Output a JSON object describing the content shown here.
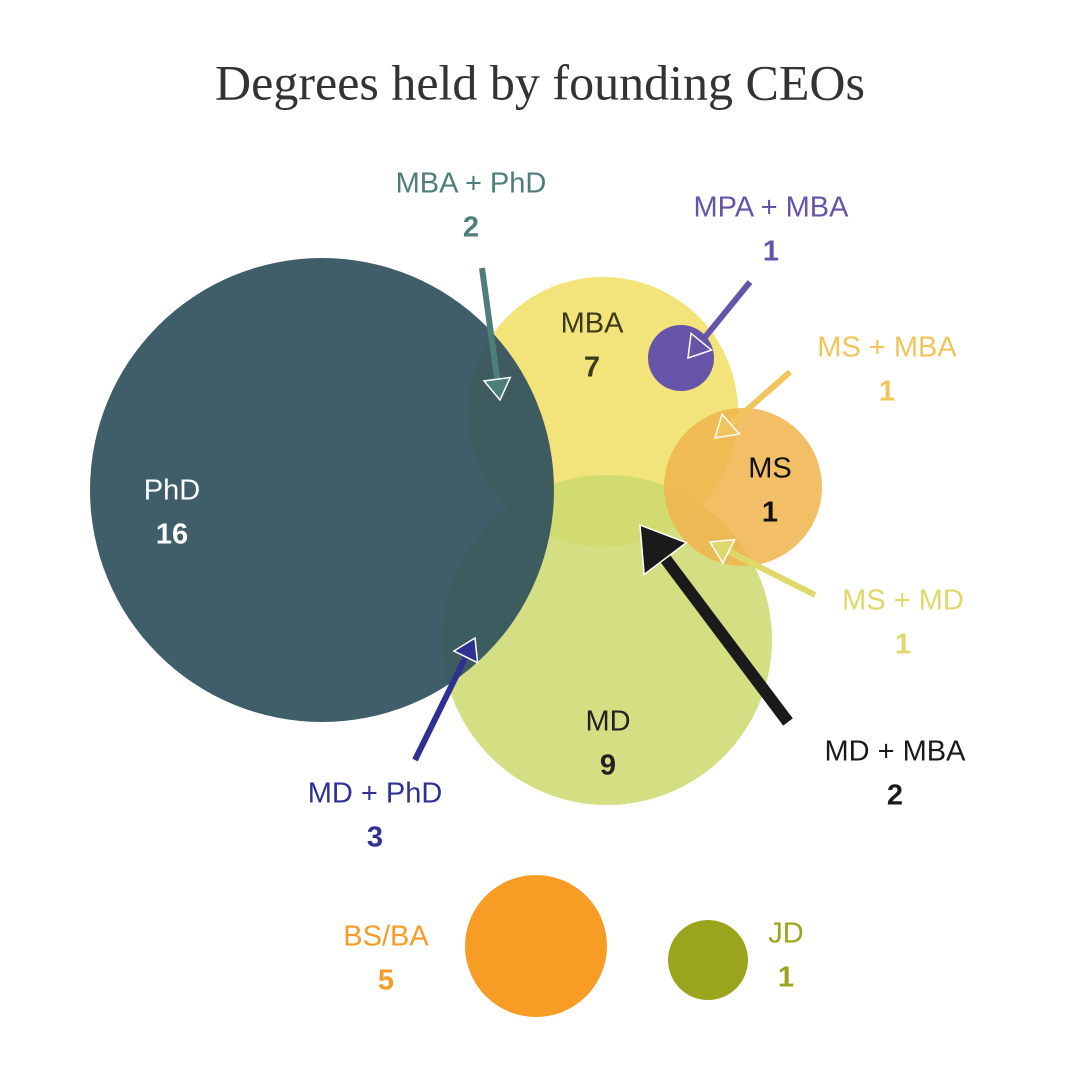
{
  "chart_data": {
    "type": "venn",
    "title": "Degrees held by founding CEOs",
    "sets": [
      {
        "name": "PhD",
        "value": 16,
        "color": "#2f505c"
      },
      {
        "name": "MBA",
        "value": 7,
        "color": "#f2e47a"
      },
      {
        "name": "MD",
        "value": 9,
        "color": "#cdd96e"
      },
      {
        "name": "MS",
        "value": 1,
        "color": "#f0b44c"
      },
      {
        "name": "BS/BA",
        "value": 5,
        "color": "#f79c25"
      },
      {
        "name": "JD",
        "value": 1,
        "color": "#9aa41d"
      }
    ],
    "overlaps": [
      {
        "name": "MBA + PhD",
        "value": 2,
        "color": "#4e7e7a"
      },
      {
        "name": "MPA + MBA",
        "value": 1,
        "color": "#6654a8"
      },
      {
        "name": "MS + MBA",
        "value": 1,
        "color": "#f2c55c"
      },
      {
        "name": "MS + MD",
        "value": 1,
        "color": "#e0d86a"
      },
      {
        "name": "MD + MBA",
        "value": 2,
        "color": "#1a1a1a"
      },
      {
        "name": "MD + PhD",
        "value": 3,
        "color": "#2e3192"
      }
    ]
  }
}
